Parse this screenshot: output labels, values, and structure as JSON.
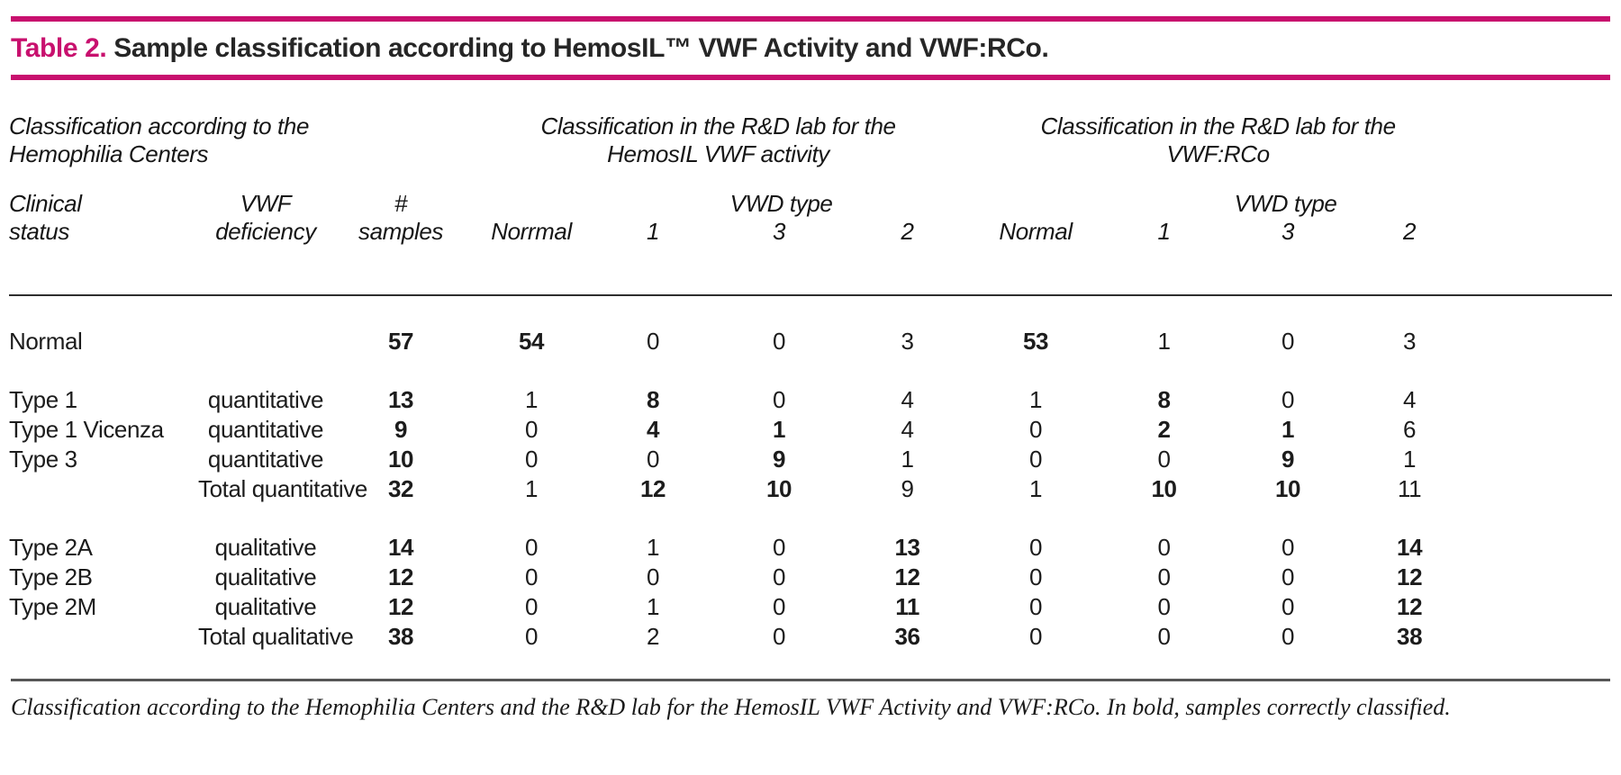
{
  "accent_color": "#C8106E",
  "title": {
    "label": "Table 2.",
    "text": "Sample classification according to HemosIL™ VWF Activity and VWF:RCo."
  },
  "group_headers": {
    "centers": {
      "line1": "Classification according to the",
      "line2": "Hemophilia Centers"
    },
    "hemosil": {
      "line1": "Classification in the R&D lab for the",
      "line2": "HemosIL VWF activity"
    },
    "rco": {
      "line1": "Classification in the R&D lab for the",
      "line2": "VWF:RCo"
    }
  },
  "column_headers": {
    "clinical_status_l1": "Clinical",
    "clinical_status_l2": "status",
    "vwf_deficiency_l1": "VWF",
    "vwf_deficiency_l2": "deficiency",
    "samples_l1": "#",
    "samples_l2": "samples",
    "hemosil_normal": "Norrmal",
    "hemosil_vwd_type": "VWD type",
    "hemosil_type_1": "1",
    "hemosil_type_3": "3",
    "hemosil_type_2": "2",
    "rco_normal": "Normal",
    "rco_vwd_type": "VWD type",
    "rco_type_1": "1",
    "rco_type_3": "3",
    "rco_type_2": "2"
  },
  "rows": [
    {
      "gap": "lg",
      "cells": [
        {
          "v": "Normal"
        },
        {
          "v": ""
        },
        {
          "v": "57",
          "b": true
        },
        {
          "v": "54",
          "b": true
        },
        {
          "v": "0"
        },
        {
          "v": "0"
        },
        {
          "v": "3"
        },
        {
          "v": "53",
          "b": true
        },
        {
          "v": "1"
        },
        {
          "v": "0"
        },
        {
          "v": "3"
        }
      ]
    },
    {
      "gap": "md",
      "cells": [
        {
          "v": "Type 1"
        },
        {
          "v": "quantitative"
        },
        {
          "v": "13",
          "b": true
        },
        {
          "v": "1"
        },
        {
          "v": "8",
          "b": true
        },
        {
          "v": "0"
        },
        {
          "v": "4"
        },
        {
          "v": "1"
        },
        {
          "v": "8",
          "b": true
        },
        {
          "v": "0"
        },
        {
          "v": "4"
        }
      ]
    },
    {
      "gap": "",
      "cells": [
        {
          "v": "Type 1 Vicenza"
        },
        {
          "v": "quantitative"
        },
        {
          "v": "9",
          "b": true
        },
        {
          "v": "0"
        },
        {
          "v": "4",
          "b": true
        },
        {
          "v": "1",
          "b": true
        },
        {
          "v": "4"
        },
        {
          "v": "0"
        },
        {
          "v": "2",
          "b": true
        },
        {
          "v": "1",
          "b": true
        },
        {
          "v": "6"
        }
      ]
    },
    {
      "gap": "",
      "cells": [
        {
          "v": "Type 3"
        },
        {
          "v": "quantitative"
        },
        {
          "v": "10",
          "b": true
        },
        {
          "v": "0"
        },
        {
          "v": "0"
        },
        {
          "v": "9",
          "b": true
        },
        {
          "v": "1"
        },
        {
          "v": "0"
        },
        {
          "v": "0"
        },
        {
          "v": "9",
          "b": true
        },
        {
          "v": "1"
        }
      ]
    },
    {
      "gap": "",
      "cells": [
        {
          "v": ""
        },
        {
          "v": "Total quantitative"
        },
        {
          "v": "32",
          "b": true
        },
        {
          "v": "1"
        },
        {
          "v": "12",
          "b": true
        },
        {
          "v": "10",
          "b": true
        },
        {
          "v": "9"
        },
        {
          "v": "1"
        },
        {
          "v": "10",
          "b": true
        },
        {
          "v": "10",
          "b": true
        },
        {
          "v": "11"
        }
      ]
    },
    {
      "gap": "md",
      "cells": [
        {
          "v": "Type 2A"
        },
        {
          "v": "qualitative"
        },
        {
          "v": "14",
          "b": true
        },
        {
          "v": "0"
        },
        {
          "v": "1"
        },
        {
          "v": "0"
        },
        {
          "v": "13",
          "b": true
        },
        {
          "v": "0"
        },
        {
          "v": "0"
        },
        {
          "v": "0"
        },
        {
          "v": "14",
          "b": true
        }
      ]
    },
    {
      "gap": "",
      "cells": [
        {
          "v": "Type 2B"
        },
        {
          "v": "qualitative"
        },
        {
          "v": "12",
          "b": true
        },
        {
          "v": "0"
        },
        {
          "v": "0"
        },
        {
          "v": "0"
        },
        {
          "v": "12",
          "b": true
        },
        {
          "v": "0"
        },
        {
          "v": "0"
        },
        {
          "v": "0"
        },
        {
          "v": "12",
          "b": true
        }
      ]
    },
    {
      "gap": "",
      "cells": [
        {
          "v": "Type 2M"
        },
        {
          "v": "qualitative"
        },
        {
          "v": "12",
          "b": true
        },
        {
          "v": "0"
        },
        {
          "v": "1"
        },
        {
          "v": "0"
        },
        {
          "v": "11",
          "b": true
        },
        {
          "v": "0"
        },
        {
          "v": "0"
        },
        {
          "v": "0"
        },
        {
          "v": "12",
          "b": true
        }
      ]
    },
    {
      "gap": "",
      "cells": [
        {
          "v": ""
        },
        {
          "v": "Total qualitative"
        },
        {
          "v": "38",
          "b": true
        },
        {
          "v": "0"
        },
        {
          "v": "2"
        },
        {
          "v": "0"
        },
        {
          "v": "36",
          "b": true
        },
        {
          "v": "0"
        },
        {
          "v": "0"
        },
        {
          "v": "0"
        },
        {
          "v": "38",
          "b": true
        }
      ]
    }
  ],
  "footnote": "Classification according to the Hemophilia Centers and the R&D lab for the HemosIL VWF Activity and VWF:RCo. In bold, samples correctly classified."
}
